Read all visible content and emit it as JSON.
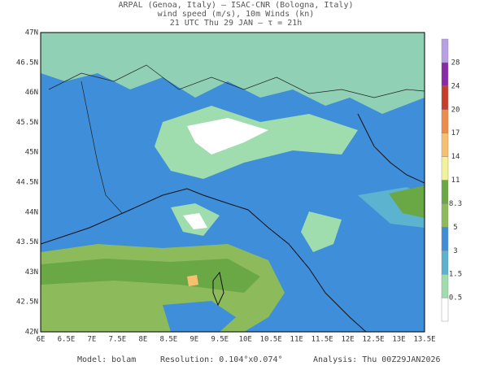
{
  "header": {
    "lines": [
      "ARPAL (Genoa, Italy)  —  ISAC-CNR (Bologna, Italy)",
      "wind speed (m/s), 10m Winds (kn)",
      "21 UTC Thu 29 JAN  —  τ = 21h"
    ]
  },
  "map": {
    "xticks": [
      "6E",
      "6.5E",
      "7E",
      "7.5E",
      "8E",
      "8.5E",
      "9E",
      "9.5E",
      "10E",
      "10.5E",
      "11E",
      "11.5E",
      "12E",
      "12.5E",
      "13E",
      "13.5E"
    ],
    "yticks": [
      "47N",
      "46.5N",
      "46N",
      "45.5N",
      "45N",
      "44.5N",
      "44N",
      "43.5N",
      "43N",
      "42.5N",
      "42N"
    ]
  },
  "colorbar": {
    "labels": [
      "0.5",
      "1.5",
      "3",
      "5",
      "8.3",
      "11",
      "14",
      "17",
      "20",
      "24",
      "28"
    ],
    "colors": [
      "#ffffff",
      "#9fdcae",
      "#5bb3d0",
      "#3e8ed9",
      "#8dbb5b",
      "#6aa845",
      "#f2f29a",
      "#f7c070",
      "#ef8a4a",
      "#c83c2a",
      "#8a2aa8",
      "#b9a0e6"
    ]
  },
  "footer": {
    "model": "Model: bolam",
    "resolution": "Resolution: 0.104°x0.074°",
    "analysis": "Analysis: Thu 00Z29JAN2026"
  }
}
